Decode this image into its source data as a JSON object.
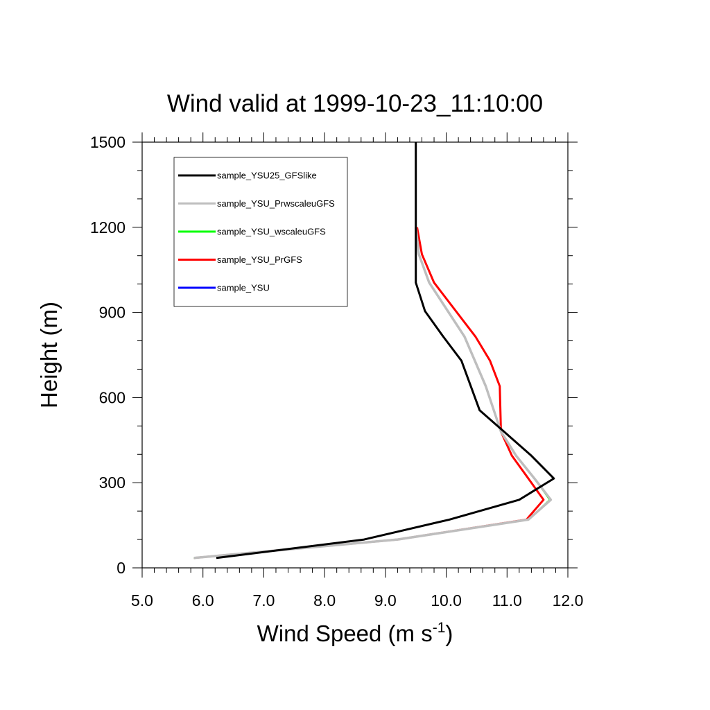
{
  "chart_data": {
    "type": "line",
    "title": "Wind valid at 1999-10-23_11:10:00",
    "xlabel": "Wind Speed (m s",
    "xlabel_sup": "-1",
    "xlabel_tail": ")",
    "ylabel": "Height (m)",
    "xlim": [
      5.0,
      12.0
    ],
    "ylim": [
      0,
      1500
    ],
    "x_ticks": [
      "5.0",
      "6.0",
      "7.0",
      "8.0",
      "9.0",
      "10.0",
      "11.0",
      "12.0"
    ],
    "y_ticks": [
      "0",
      "300",
      "600",
      "900",
      "1200",
      "1500"
    ],
    "grid": false,
    "legend_position": "top-left",
    "series": [
      {
        "name": "sample_YSU25_GFSlike",
        "color": "#000000",
        "points": [
          [
            6.22,
            35
          ],
          [
            8.65,
            100
          ],
          [
            10.05,
            170
          ],
          [
            11.2,
            240
          ],
          [
            11.77,
            315
          ],
          [
            11.4,
            395
          ],
          [
            10.95,
            480
          ],
          [
            10.55,
            555
          ],
          [
            10.25,
            730
          ],
          [
            9.95,
            815
          ],
          [
            9.65,
            905
          ],
          [
            9.5,
            1005
          ],
          [
            9.5,
            1500
          ]
        ]
      },
      {
        "name": "sample_YSU_PrwscaleuGFS",
        "color": "#bebebe",
        "points": [
          [
            5.85,
            35
          ],
          [
            9.2,
            100
          ],
          [
            11.35,
            170
          ],
          [
            11.72,
            240
          ],
          [
            11.45,
            315
          ],
          [
            11.15,
            395
          ],
          [
            10.9,
            480
          ],
          [
            10.65,
            640
          ],
          [
            10.3,
            815
          ],
          [
            9.72,
            1005
          ],
          [
            9.55,
            1105
          ],
          [
            9.5,
            1200
          ]
        ]
      },
      {
        "name": "sample_YSU_wscaleuGFS",
        "color": "#00ff00",
        "points": [
          [
            5.85,
            35
          ],
          [
            9.2,
            100
          ],
          [
            11.35,
            170
          ],
          [
            11.7,
            240
          ],
          [
            11.45,
            315
          ],
          [
            11.15,
            395
          ],
          [
            10.9,
            480
          ],
          [
            10.65,
            640
          ],
          [
            10.3,
            815
          ],
          [
            9.72,
            1005
          ],
          [
            9.55,
            1105
          ],
          [
            9.5,
            1200
          ]
        ]
      },
      {
        "name": "sample_YSU_PrGFS",
        "color": "#ff0000",
        "points": [
          [
            5.85,
            35
          ],
          [
            9.2,
            100
          ],
          [
            11.32,
            170
          ],
          [
            11.6,
            240
          ],
          [
            11.35,
            315
          ],
          [
            11.08,
            395
          ],
          [
            10.9,
            480
          ],
          [
            10.88,
            640
          ],
          [
            10.72,
            730
          ],
          [
            10.48,
            815
          ],
          [
            9.8,
            1005
          ],
          [
            9.6,
            1105
          ],
          [
            9.52,
            1200
          ]
        ]
      },
      {
        "name": "sample_YSU",
        "color": "#0000ff",
        "points": []
      }
    ]
  }
}
